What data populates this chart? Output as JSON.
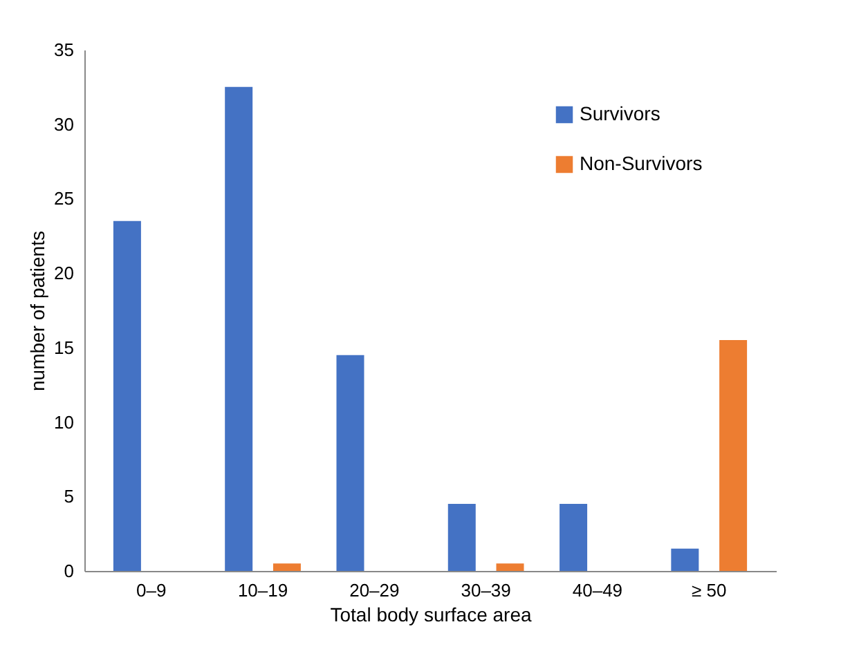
{
  "chart_data": {
    "type": "bar",
    "xlabel": "Total body surface area",
    "ylabel": "number of patients",
    "categories": [
      "0–9",
      "10–19",
      "20–29",
      "30–39",
      "40–49",
      "≥ 50"
    ],
    "series": [
      {
        "name": "Survivors",
        "color": "#4472c4",
        "values": [
          23.5,
          32.5,
          14.5,
          4.5,
          4.5,
          1.5
        ]
      },
      {
        "name": "Non-Survivors",
        "color": "#ed7d31",
        "values": [
          0,
          0.5,
          0,
          0.5,
          0,
          15.5
        ]
      }
    ],
    "ylim": [
      0,
      35
    ],
    "yticks": [
      0,
      5,
      10,
      15,
      20,
      25,
      30,
      35
    ],
    "grid": false,
    "legend": "top right"
  }
}
